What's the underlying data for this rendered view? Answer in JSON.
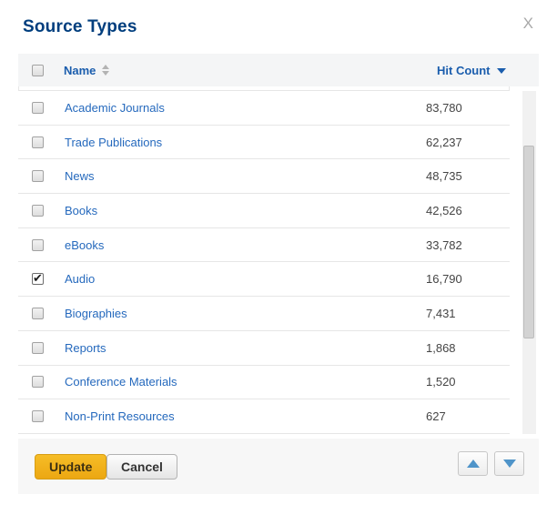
{
  "dialog": {
    "title": "Source Types",
    "close_label": "X"
  },
  "table": {
    "columns": {
      "name": "Name",
      "hit_count": "Hit Count"
    },
    "sort": {
      "active_column": "Hit Count",
      "direction": "desc"
    },
    "rows": [
      {
        "name": "Academic Journals",
        "hit_count": "83,780",
        "checked": false
      },
      {
        "name": "Trade Publications",
        "hit_count": "62,237",
        "checked": false
      },
      {
        "name": "News",
        "hit_count": "48,735",
        "checked": false
      },
      {
        "name": "Books",
        "hit_count": "42,526",
        "checked": false
      },
      {
        "name": "eBooks",
        "hit_count": "33,782",
        "checked": false
      },
      {
        "name": "Audio",
        "hit_count": "16,790",
        "checked": true
      },
      {
        "name": "Biographies",
        "hit_count": "7,431",
        "checked": false
      },
      {
        "name": "Reports",
        "hit_count": "1,868",
        "checked": false
      },
      {
        "name": "Conference Materials",
        "hit_count": "1,520",
        "checked": false
      },
      {
        "name": "Non-Print Resources",
        "hit_count": "627",
        "checked": false
      }
    ]
  },
  "footer": {
    "update_label": "Update",
    "cancel_label": "Cancel"
  },
  "colors": {
    "title_blue": "#003e7e",
    "header_blue": "#1a5dad",
    "link_blue": "#2569bd",
    "update_gold": "#f0b01c",
    "footer_gray": "#f7f7f7",
    "arrow_blue": "#4f94c9"
  }
}
